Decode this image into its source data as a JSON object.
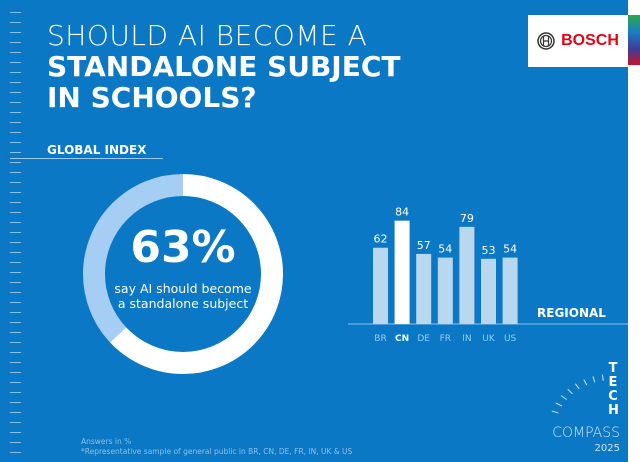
{
  "header": {
    "title_line1": "SHOULD AI BECOME A",
    "title_line2": "STANDALONE SUBJECT",
    "title_line3": "IN SCHOOLS?"
  },
  "logo": {
    "text": "BOSCH",
    "brand_color": "#e20015",
    "icon": "bosch-armature-icon"
  },
  "colors": {
    "background": "#0a78c4",
    "highlight": "#ffffff",
    "muted_bar": "#b9d7ef",
    "donut_rest": "#a6cdf4"
  },
  "global": {
    "label": "GLOBAL INDEX",
    "value": 63,
    "value_text": "63%",
    "footnote_mark": "*",
    "caption": "say AI should become a standalone subject"
  },
  "chart_data": [
    {
      "type": "pie",
      "variant": "donut",
      "title": "GLOBAL INDEX",
      "values": [
        63,
        37
      ],
      "labels": [
        "say AI should become a standalone subject",
        ""
      ]
    },
    {
      "type": "bar",
      "title": "REGIONAL",
      "categories": [
        "BR",
        "CN",
        "DE",
        "FR",
        "IN",
        "UK",
        "US"
      ],
      "values": [
        62,
        84,
        57,
        54,
        79,
        53,
        54
      ],
      "highlight": "CN",
      "data_labels": true,
      "ylim": [
        0,
        100
      ]
    }
  ],
  "notes": {
    "line1": "Answers in %",
    "line2": "*Representative sample of general public in BR, CN, DE, FR, IN, UK & US"
  },
  "brand": {
    "tech": "TECH",
    "compass": "COMPASS",
    "year": "2025"
  }
}
